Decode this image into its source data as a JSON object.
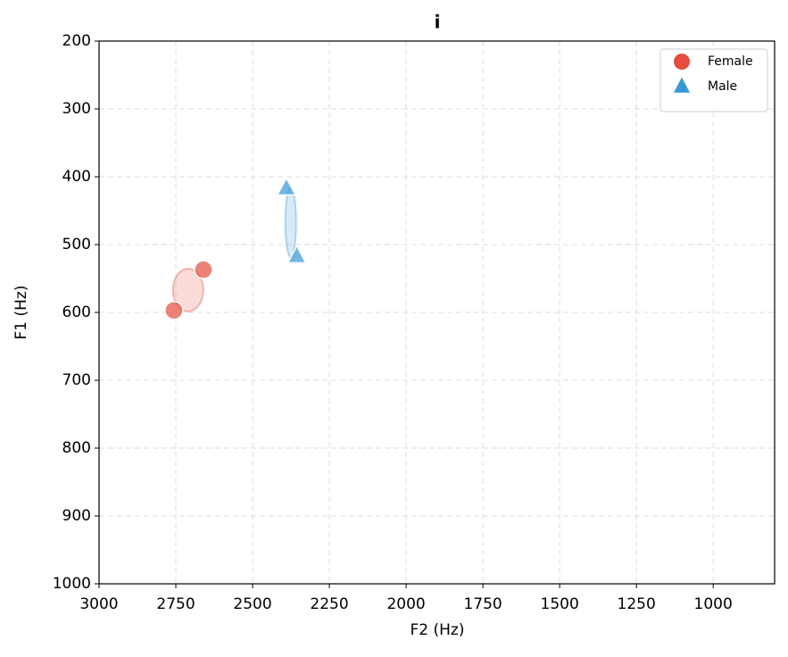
{
  "chart_data": {
    "type": "scatter",
    "title": "i",
    "x_label": "F2 (Hz)",
    "y_label": "F1 (Hz)",
    "xlim": [
      3000,
      800
    ],
    "xticks": [
      3000,
      2750,
      2500,
      2250,
      2000,
      1750,
      1500,
      1250,
      1000
    ],
    "ylim": [
      200,
      1000
    ],
    "yticks": [
      200,
      300,
      400,
      500,
      600,
      700,
      800,
      900,
      1000
    ],
    "y_inverted": true,
    "grid": true,
    "legend": "upper right",
    "series": [
      {
        "name": "Female",
        "color": "#e74c3c",
        "marker": "circle",
        "x": [
          2756,
          2660
        ],
        "values": [
          597,
          537
        ],
        "ellipse": {
          "cx": 2710,
          "cy": 567,
          "width": 99,
          "height": 63
        }
      },
      {
        "name": "Male",
        "color": "#3498db",
        "marker": "triangle",
        "x": [
          2390,
          2356
        ],
        "values": [
          417,
          517
        ],
        "ellipse": {
          "cx": 2376,
          "cy": 467,
          "width": 35,
          "height": 103
        }
      }
    ]
  }
}
